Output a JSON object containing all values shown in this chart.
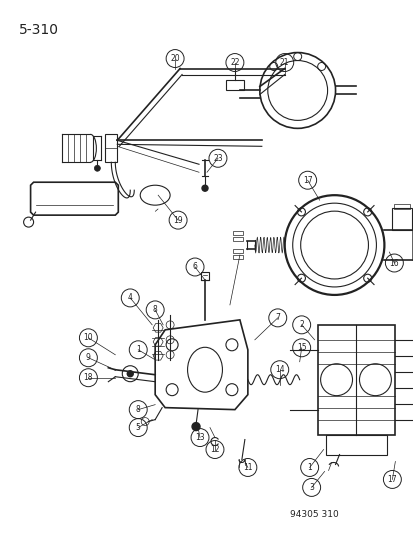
{
  "page_label": "5-310",
  "figure_code": "94305 310",
  "bg": "#ffffff",
  "lc": "#222222",
  "fig_w": 4.14,
  "fig_h": 5.33,
  "dpi": 100,
  "label_fs": 5.5,
  "title_fs": 10,
  "code_fs": 6.5
}
